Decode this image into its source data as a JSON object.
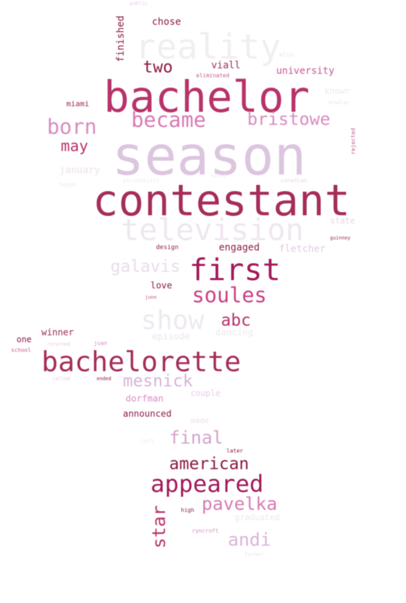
{
  "word_cloud": {
    "words": [
      {
        "text": "season",
        "color": "#dcc5df"
      },
      {
        "text": "contestant",
        "color": "#a62d5a"
      },
      {
        "text": "bachelor",
        "color": "#b8336a"
      },
      {
        "text": "bachelorette",
        "color": "#a62d5a"
      },
      {
        "text": "reality",
        "color": "#f1eef2"
      },
      {
        "text": "television",
        "color": "#efe7f0"
      },
      {
        "text": "first",
        "color": "#a3195b"
      },
      {
        "text": "show",
        "color": "#eee9f0"
      },
      {
        "text": "soules",
        "color": "#cc3f84"
      },
      {
        "text": "became",
        "color": "#d77bb3"
      },
      {
        "text": "bristowe",
        "color": "#d98cbf"
      },
      {
        "text": "born",
        "color": "#d98cbf"
      },
      {
        "text": "two",
        "color": "#8b1a45"
      },
      {
        "text": "may",
        "color": "#b8336a"
      },
      {
        "text": "galavis",
        "color": "#e8dde9"
      },
      {
        "text": "abc",
        "color": "#b8336a"
      },
      {
        "text": "mesnick",
        "color": "#d5b4d8"
      },
      {
        "text": "final",
        "color": "#d5a3cd"
      },
      {
        "text": "american",
        "color": "#8b1a45"
      },
      {
        "text": "appeared",
        "color": "#a3195b"
      },
      {
        "text": "pavelka",
        "color": "#d77bb3"
      },
      {
        "text": "andi",
        "color": "#dab4d8"
      },
      {
        "text": "star",
        "color": "#b8336a"
      },
      {
        "text": "chose",
        "color": "#8b1a45"
      },
      {
        "text": "public",
        "color": "#e4cde5"
      },
      {
        "text": "finished",
        "color": "#8b1a45"
      },
      {
        "text": "viall",
        "color": "#9a2a55"
      },
      {
        "text": "eliminated",
        "color": "#c45a90"
      },
      {
        "text": "university",
        "color": "#c45a90"
      },
      {
        "text": "miami",
        "color": "#9a2a55"
      },
      {
        "text": "known",
        "color": "#f0e6ef"
      },
      {
        "text": "bradley",
        "color": "#eee0ec"
      },
      {
        "text": "rejected",
        "color": "#c45a90"
      },
      {
        "text": "january",
        "color": "#ede1ed"
      },
      {
        "text": "personality",
        "color": "#f0e8f0"
      },
      {
        "text": "canadian",
        "color": "#e9d6ea"
      },
      {
        "text": "state",
        "color": "#e9d6ea"
      },
      {
        "text": "engaged",
        "color": "#8b1a45"
      },
      {
        "text": "fletcher",
        "color": "#e5c9e4"
      },
      {
        "text": "design",
        "color": "#8b1a45"
      },
      {
        "text": "guinney",
        "color": "#9a2a55"
      },
      {
        "text": "love",
        "color": "#8b1a45"
      },
      {
        "text": "june",
        "color": "#c45a90"
      },
      {
        "text": "episode",
        "color": "#efe4ef"
      },
      {
        "text": "dancing",
        "color": "#f0e8f0"
      },
      {
        "text": "winner",
        "color": "#9a2a55"
      },
      {
        "text": "one",
        "color": "#8b1a45"
      },
      {
        "text": "returned",
        "color": "#e5c9e4"
      },
      {
        "text": "school",
        "color": "#c45a90"
      },
      {
        "text": "juan",
        "color": "#d98cbf"
      },
      {
        "text": "called",
        "color": "#e5c9e4"
      },
      {
        "text": "ended",
        "color": "#8b1a45"
      },
      {
        "text": "couple",
        "color": "#eaccea"
      },
      {
        "text": "dorfman",
        "color": "#d98cbf"
      },
      {
        "text": "announced",
        "color": "#8b1a45"
      },
      {
        "text": "made",
        "color": "#eee0ec"
      },
      {
        "text": "left",
        "color": "#f0e8f0"
      },
      {
        "text": "later",
        "color": "#8b1a45"
      },
      {
        "text": "high",
        "color": "#8b1a45"
      },
      {
        "text": "graduated",
        "color": "#f0e8f0"
      },
      {
        "text": "ryncroft",
        "color": "#d98cbf"
      },
      {
        "text": "former",
        "color": "#efe4ef"
      },
      {
        "text": "also",
        "color": "#ede3ee"
      },
      {
        "text": "begun",
        "color": "#f0e8f0"
      },
      {
        "text": "ended",
        "color": "#f0e8f0"
      }
    ]
  }
}
